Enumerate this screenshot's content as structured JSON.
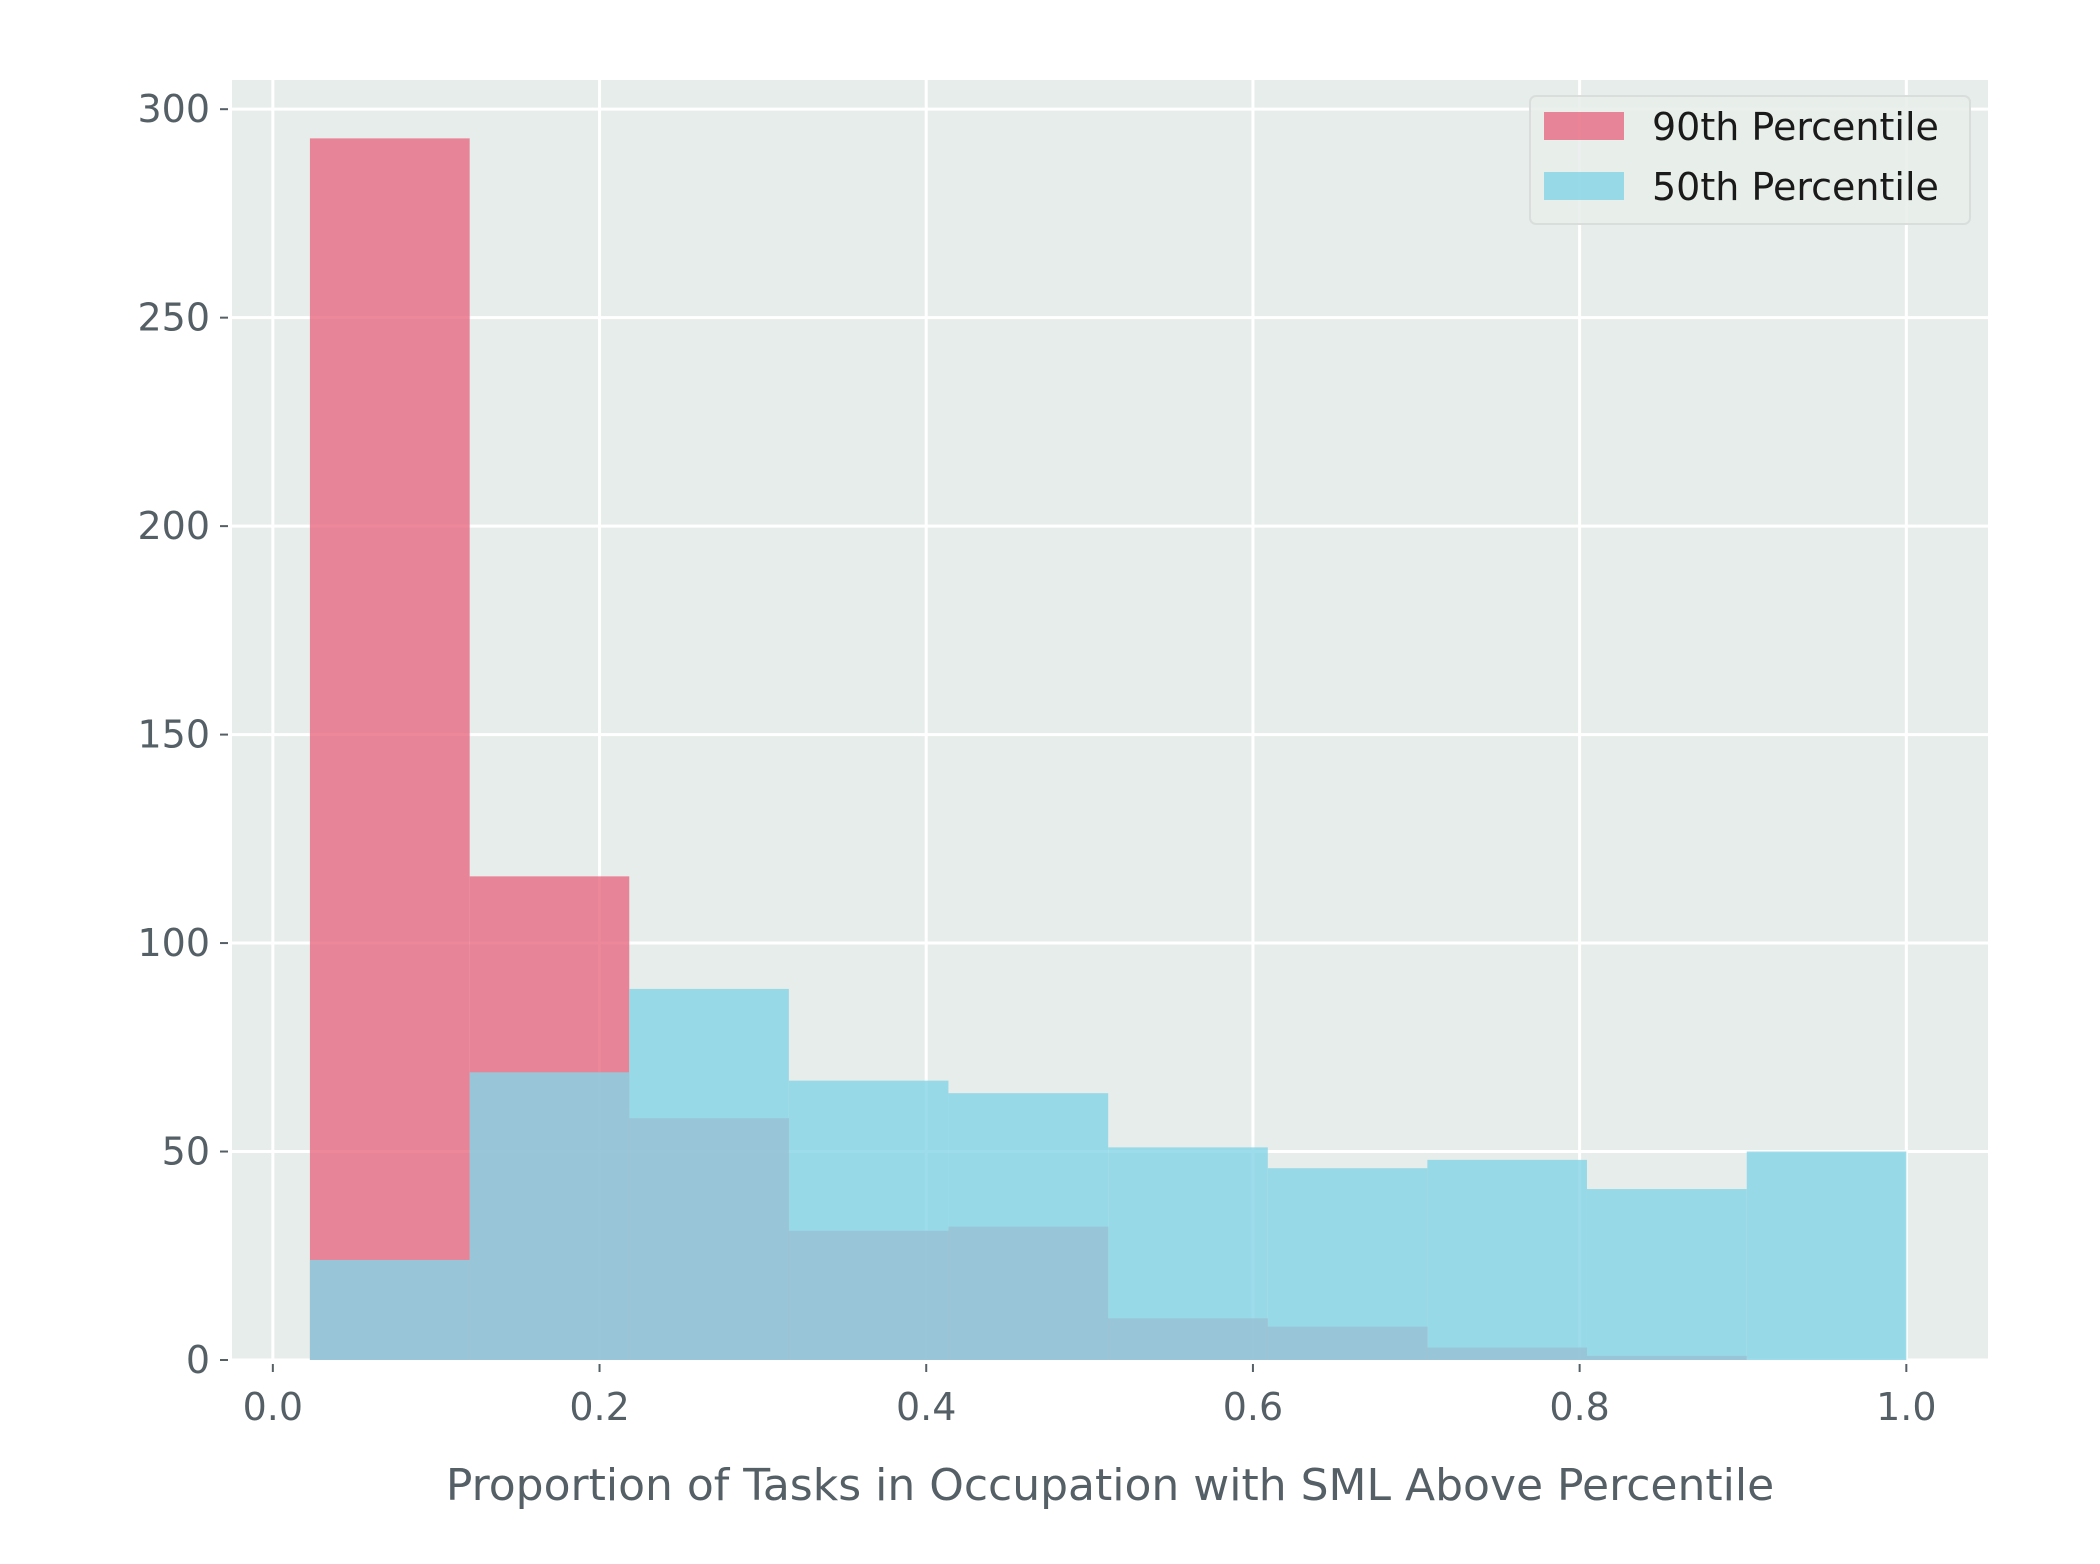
{
  "chart_data": {
    "type": "histogram",
    "xlabel": "Proportion of Tasks in Occupation with SML Above Percentile",
    "ylabel": "",
    "xlim": [
      -0.025,
      1.05
    ],
    "ylim": [
      0,
      307
    ],
    "x_ticks": [
      0.0,
      0.2,
      0.4,
      0.6,
      0.8,
      1.0
    ],
    "x_tick_labels": [
      "0.0",
      "0.2",
      "0.4",
      "0.6",
      "0.8",
      "1.0"
    ],
    "y_ticks": [
      0,
      50,
      100,
      150,
      200,
      250,
      300
    ],
    "y_tick_labels": [
      "0",
      "50",
      "100",
      "150",
      "200",
      "250",
      "300"
    ],
    "grid": true,
    "legend_position": "top-right",
    "series": [
      {
        "name": "90th Percentile",
        "color": "#e8677f",
        "opacity": 0.78,
        "bins": [
          {
            "x0": 0.0227,
            "x1": 0.1205,
            "value": 293
          },
          {
            "x0": 0.1205,
            "x1": 0.2182,
            "value": 116
          },
          {
            "x0": 0.2182,
            "x1": 0.3159,
            "value": 58
          },
          {
            "x0": 0.3159,
            "x1": 0.4136,
            "value": 31
          },
          {
            "x0": 0.4136,
            "x1": 0.5114,
            "value": 32
          },
          {
            "x0": 0.5114,
            "x1": 0.6091,
            "value": 10
          },
          {
            "x0": 0.6091,
            "x1": 0.7068,
            "value": 8
          },
          {
            "x0": 0.7068,
            "x1": 0.8045,
            "value": 3
          },
          {
            "x0": 0.8045,
            "x1": 0.9023,
            "value": 1
          },
          {
            "x0": 0.9023,
            "x1": 1.0,
            "value": 0
          }
        ]
      },
      {
        "name": "50th Percentile",
        "color": "#86d4e6",
        "opacity": 0.82,
        "bins": [
          {
            "x0": 0.0227,
            "x1": 0.1205,
            "value": 24
          },
          {
            "x0": 0.1205,
            "x1": 0.2182,
            "value": 69
          },
          {
            "x0": 0.2182,
            "x1": 0.3159,
            "value": 89
          },
          {
            "x0": 0.3159,
            "x1": 0.4136,
            "value": 67
          },
          {
            "x0": 0.4136,
            "x1": 0.5114,
            "value": 64
          },
          {
            "x0": 0.5114,
            "x1": 0.6091,
            "value": 51
          },
          {
            "x0": 0.6091,
            "x1": 0.7068,
            "value": 46
          },
          {
            "x0": 0.7068,
            "x1": 0.8045,
            "value": 48
          },
          {
            "x0": 0.8045,
            "x1": 0.9023,
            "value": 41
          },
          {
            "x0": 0.9023,
            "x1": 1.0,
            "value": 50
          }
        ]
      }
    ],
    "colors": {
      "plot_background": "#e7edea",
      "grid": "#ffffff",
      "tick_text": "#555f66"
    }
  }
}
